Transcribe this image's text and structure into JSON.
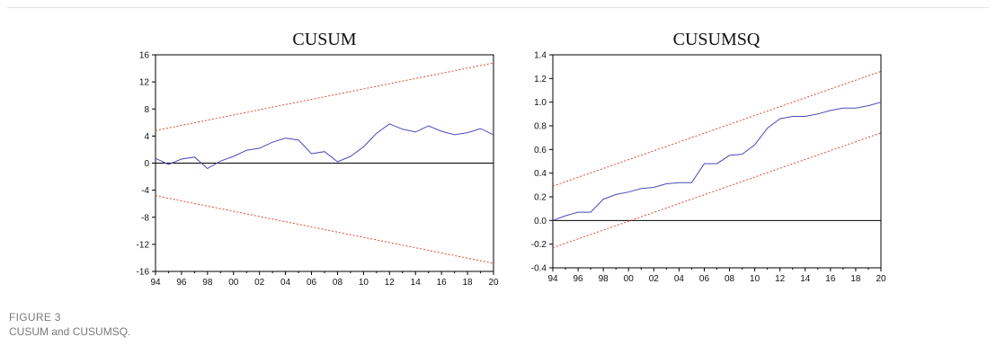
{
  "figure": {
    "label": "FIGURE 3",
    "caption": "CUSUM and CUSUMSQ."
  },
  "colors": {
    "series": "#4a4ab8",
    "bounds": "#d94a3a",
    "axis": "#000000"
  },
  "chart_data": [
    {
      "type": "line",
      "title": "CUSUM",
      "xlabel": "",
      "ylabel": "",
      "xlim": [
        1994,
        2020
      ],
      "ylim": [
        -16,
        16
      ],
      "yticks": [
        16,
        12,
        8,
        4,
        0,
        -4,
        -8,
        -12,
        -16
      ],
      "ytick_labels": [
        "16",
        "12",
        "8",
        "4",
        "0",
        "-4",
        "-8",
        "-12",
        "-16"
      ],
      "xticks": [
        1994,
        1996,
        1998,
        2000,
        2002,
        2004,
        2006,
        2008,
        2010,
        2012,
        2014,
        2016,
        2018,
        2020
      ],
      "xtick_labels": [
        "94",
        "96",
        "98",
        "00",
        "02",
        "04",
        "06",
        "08",
        "10",
        "12",
        "14",
        "16",
        "18",
        "20"
      ],
      "zero_line": true,
      "grid": false,
      "legend": "none",
      "series": [
        {
          "role": "statistic",
          "x": [
            1994,
            1995,
            1996,
            1997,
            1998,
            1999,
            2000,
            2001,
            2002,
            2003,
            2004,
            2005,
            2006,
            2007,
            2008,
            2009,
            2010,
            2011,
            2012,
            2013,
            2014,
            2015,
            2016,
            2017,
            2018,
            2019,
            2020
          ],
          "y": [
            0.7,
            -0.2,
            0.6,
            0.9,
            -0.8,
            0.3,
            1.0,
            1.9,
            2.2,
            3.1,
            3.7,
            3.4,
            1.4,
            1.7,
            0.2,
            1.0,
            2.4,
            4.4,
            5.8,
            5.0,
            4.6,
            5.5,
            4.7,
            4.2,
            4.5,
            5.1,
            4.2
          ]
        },
        {
          "role": "upper_bound",
          "x": [
            1994,
            2020
          ],
          "y": [
            4.8,
            14.8
          ]
        },
        {
          "role": "lower_bound",
          "x": [
            1994,
            2020
          ],
          "y": [
            -4.8,
            -14.8
          ]
        }
      ]
    },
    {
      "type": "line",
      "title": "CUSUMSQ",
      "xlabel": "",
      "ylabel": "",
      "xlim": [
        1994,
        2020
      ],
      "ylim": [
        -0.4,
        1.4
      ],
      "yticks": [
        1.4,
        1.2,
        1.0,
        0.8,
        0.6,
        0.4,
        0.2,
        0.0,
        -0.2,
        -0.4
      ],
      "ytick_labels": [
        "1.4",
        "1.2",
        "1.0",
        "0.8",
        "0.6",
        "0.4",
        "0.2",
        "0.0",
        "-0.2",
        "-0.4"
      ],
      "xticks": [
        1994,
        1996,
        1998,
        2000,
        2002,
        2004,
        2006,
        2008,
        2010,
        2012,
        2014,
        2016,
        2018,
        2020
      ],
      "xtick_labels": [
        "94",
        "96",
        "98",
        "00",
        "02",
        "04",
        "06",
        "08",
        "10",
        "12",
        "14",
        "16",
        "18",
        "20"
      ],
      "zero_line": true,
      "grid": false,
      "legend": "none",
      "series": [
        {
          "role": "statistic",
          "x": [
            1994,
            1995,
            1996,
            1997,
            1998,
            1999,
            2000,
            2001,
            2002,
            2003,
            2004,
            2005,
            2006,
            2007,
            2008,
            2009,
            2010,
            2011,
            2012,
            2013,
            2014,
            2015,
            2016,
            2017,
            2018,
            2019,
            2020
          ],
          "y": [
            0.0,
            0.04,
            0.07,
            0.07,
            0.18,
            0.22,
            0.24,
            0.27,
            0.28,
            0.31,
            0.32,
            0.32,
            0.48,
            0.48,
            0.55,
            0.56,
            0.64,
            0.78,
            0.86,
            0.88,
            0.88,
            0.9,
            0.93,
            0.95,
            0.95,
            0.97,
            1.0
          ]
        },
        {
          "role": "upper_bound",
          "x": [
            1994,
            2020
          ],
          "y": [
            0.29,
            1.26
          ]
        },
        {
          "role": "lower_bound",
          "x": [
            1994,
            2020
          ],
          "y": [
            -0.23,
            0.74
          ]
        }
      ]
    }
  ]
}
